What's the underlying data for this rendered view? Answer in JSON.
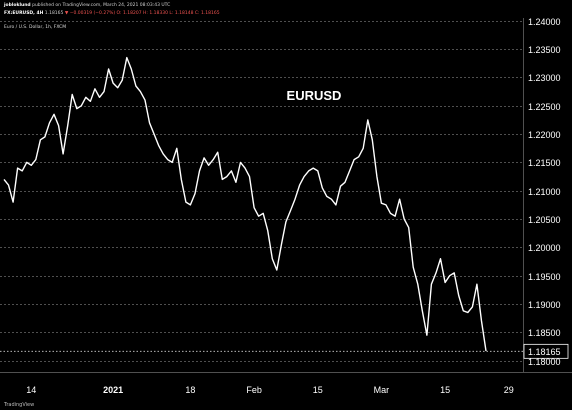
{
  "header": {
    "author": "jobloklund",
    "published": "published on TradingView.com, March 24, 2021 08:03:43 UTC",
    "symbol": "FX:EURUSD, 4H",
    "last": "1.18165",
    "change": "▼ −0.00319 (−0.27%)",
    "ohlc": "O: 1.18207   H: 1.18330   L: 1.18148   C: 1.18165",
    "series_label": "Euro / U.S. Dollar, 1h, FXCM"
  },
  "footer": {
    "logo": "TradingView"
  },
  "chart_data": {
    "type": "line",
    "title": "EURUSD",
    "x_ticks": [
      "14",
      "2021",
      "18",
      "Feb",
      "15",
      "Mar",
      "15",
      "29"
    ],
    "y_ticks": [
      "1.24000",
      "1.23500",
      "1.23000",
      "1.22500",
      "1.22000",
      "1.21500",
      "1.21000",
      "1.20500",
      "1.20000",
      "1.19500",
      "1.19000",
      "1.18500",
      "1.18000"
    ],
    "y_ticks_values": [
      1.24,
      1.235,
      1.23,
      1.225,
      1.22,
      1.215,
      1.21,
      1.205,
      1.2,
      1.195,
      1.19,
      1.185,
      1.18
    ],
    "ylim": [
      1.178,
      1.2405
    ],
    "last_price_label": "1.18165",
    "last_price": 1.18165,
    "grid": {
      "horizontal": true,
      "vertical": false
    },
    "colors": {
      "background": "#000000",
      "line": "#ffffff",
      "grid": "#6a6a6a",
      "text": "#ffffff"
    },
    "series": [
      {
        "x": [
          "2020-12-08",
          "2020-12-09",
          "2020-12-10",
          "2020-12-11",
          "2020-12-12",
          "2020-12-13",
          "2020-12-14",
          "2020-12-15",
          "2020-12-16",
          "2020-12-17",
          "2020-12-18",
          "2020-12-19",
          "2020-12-20",
          "2020-12-21",
          "2020-12-22",
          "2020-12-23",
          "2020-12-24",
          "2020-12-25",
          "2020-12-26",
          "2020-12-27",
          "2020-12-28",
          "2020-12-29",
          "2020-12-30",
          "2020-12-31",
          "2021-01-01",
          "2021-01-02",
          "2021-01-03",
          "2021-01-04",
          "2021-01-05",
          "2021-01-06",
          "2021-01-07",
          "2021-01-08",
          "2021-01-09",
          "2021-01-10",
          "2021-01-11",
          "2021-01-12",
          "2021-01-13",
          "2021-01-14",
          "2021-01-15",
          "2021-01-16",
          "2021-01-17",
          "2021-01-18",
          "2021-01-19",
          "2021-01-20",
          "2021-01-21",
          "2021-01-22",
          "2021-01-23",
          "2021-01-24",
          "2021-01-25",
          "2021-01-26",
          "2021-01-27",
          "2021-01-28",
          "2021-01-29",
          "2021-01-30",
          "2021-01-31",
          "2021-02-01",
          "2021-02-02",
          "2021-02-03",
          "2021-02-04",
          "2021-02-05",
          "2021-02-06",
          "2021-02-07",
          "2021-02-08",
          "2021-02-09",
          "2021-02-10",
          "2021-02-11",
          "2021-02-12",
          "2021-02-13",
          "2021-02-14",
          "2021-02-15",
          "2021-02-16",
          "2021-02-17",
          "2021-02-18",
          "2021-02-19",
          "2021-02-20",
          "2021-02-21",
          "2021-02-22",
          "2021-02-23",
          "2021-02-24",
          "2021-02-25",
          "2021-02-26",
          "2021-02-27",
          "2021-02-28",
          "2021-03-01",
          "2021-03-02",
          "2021-03-03",
          "2021-03-04",
          "2021-03-05",
          "2021-03-06",
          "2021-03-07",
          "2021-03-08",
          "2021-03-09",
          "2021-03-10",
          "2021-03-11",
          "2021-03-12",
          "2021-03-13",
          "2021-03-14",
          "2021-03-15",
          "2021-03-16",
          "2021-03-17",
          "2021-03-18",
          "2021-03-19",
          "2021-03-20",
          "2021-03-21",
          "2021-03-22",
          "2021-03-23",
          "2021-03-24"
        ],
        "values": [
          1.212,
          1.211,
          1.208,
          1.214,
          1.2135,
          1.215,
          1.2145,
          1.2155,
          1.219,
          1.2195,
          1.222,
          1.2235,
          1.2215,
          1.2165,
          1.2215,
          1.227,
          1.2245,
          1.225,
          1.2265,
          1.2258,
          1.228,
          1.2265,
          1.2275,
          1.2315,
          1.229,
          1.2282,
          1.2295,
          1.2335,
          1.2315,
          1.2285,
          1.2275,
          1.226,
          1.222,
          1.22,
          1.218,
          1.2165,
          1.2155,
          1.215,
          1.2175,
          1.212,
          1.208,
          1.2075,
          1.2095,
          1.2135,
          1.2158,
          1.2145,
          1.2155,
          1.2168,
          1.212,
          1.2125,
          1.2135,
          1.2115,
          1.215,
          1.214,
          1.2125,
          1.207,
          1.2055,
          1.206,
          1.203,
          1.198,
          1.196,
          1.2005,
          1.2045,
          1.2065,
          1.2085,
          1.211,
          1.2125,
          1.2135,
          1.214,
          1.2135,
          1.2105,
          1.209,
          1.2085,
          1.2075,
          1.2108,
          1.2115,
          1.2135,
          1.2155,
          1.216,
          1.2175,
          1.2225,
          1.219,
          1.2125,
          1.2078,
          1.2075,
          1.206,
          1.2055,
          1.2085,
          1.205,
          1.2035,
          1.1965,
          1.1935,
          1.1888,
          1.1845,
          1.1935,
          1.1955,
          1.198,
          1.1938,
          1.195,
          1.1955,
          1.1915,
          1.1888,
          1.1885,
          1.1895,
          1.1935,
          1.187,
          1.1817
        ]
      }
    ]
  }
}
